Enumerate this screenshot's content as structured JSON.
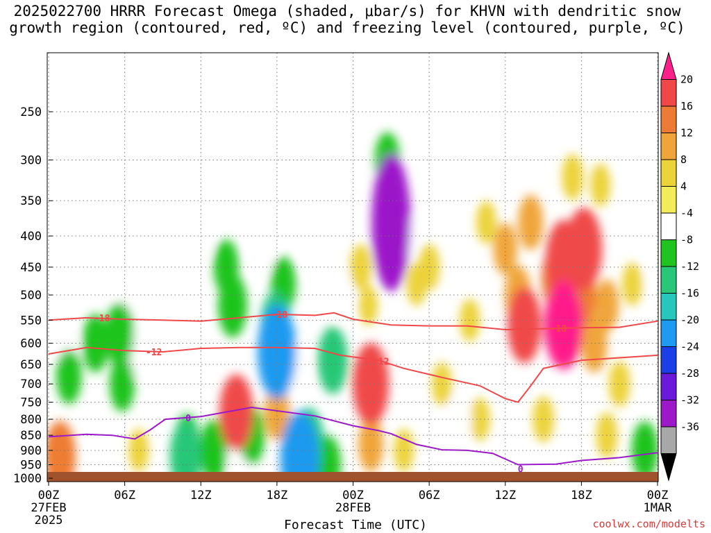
{
  "title_line1": "2025022700 HRRR Forecast Omega (shaded, μbar/s) for KHVN with dendritic snow",
  "title_line2": "growth region (contoured, red, ºC) and freezing level (contoured, purple, ºC)",
  "credit": "coolwx.com/modelts",
  "chart_data": {
    "type": "heatmap",
    "title": "2025022700 HRRR Forecast Omega (shaded, μbar/s) for KHVN with dendritic snow growth region (contoured, red, ºC) and freezing level (contoured, purple, ºC)",
    "xlabel": "Forecast Time (UTC)",
    "x_ticks": [
      {
        "hour": 0,
        "label": "00Z",
        "sub": "27FEB",
        "sub2": "2025"
      },
      {
        "hour": 6,
        "label": "06Z",
        "sub": "",
        "sub2": ""
      },
      {
        "hour": 12,
        "label": "12Z",
        "sub": "",
        "sub2": ""
      },
      {
        "hour": 18,
        "label": "18Z",
        "sub": "",
        "sub2": ""
      },
      {
        "hour": 24,
        "label": "00Z",
        "sub": "28FEB",
        "sub2": ""
      },
      {
        "hour": 30,
        "label": "06Z",
        "sub": "",
        "sub2": ""
      },
      {
        "hour": 36,
        "label": "12Z",
        "sub": "",
        "sub2": ""
      },
      {
        "hour": 42,
        "label": "18Z",
        "sub": "",
        "sub2": ""
      },
      {
        "hour": 48,
        "label": "00Z",
        "sub": "1MAR",
        "sub2": ""
      }
    ],
    "x_range_hours": [
      0,
      48
    ],
    "y_ticks_hpa": [
      250,
      300,
      350,
      400,
      450,
      500,
      550,
      600,
      650,
      700,
      750,
      800,
      850,
      900,
      950,
      1000
    ],
    "y_range_hpa": [
      200,
      1013
    ],
    "y_scale": "log-pressure",
    "grid": true,
    "colorbar": {
      "levels": [
        20,
        16,
        12,
        8,
        4,
        -4,
        -8,
        -12,
        -16,
        -20,
        -24,
        -28,
        -32,
        -36
      ],
      "colors": [
        "#ff1f8a",
        "#f04848",
        "#ee7b33",
        "#f0a53a",
        "#ecd33a",
        "#f2ec5a",
        "#ffffff",
        "#1fc41f",
        "#28c878",
        "#26c7bd",
        "#1e9af0",
        "#1a3fe6",
        "#6a1ad8",
        "#9c19c9",
        "#a8a8a8",
        "#000000"
      ]
    },
    "omega_cells": [
      {
        "h": 0.9,
        "p": 920,
        "v": 14
      },
      {
        "h": 0.9,
        "p": 890,
        "v": 6
      },
      {
        "h": 1.5,
        "p": 620,
        "v": -6
      },
      {
        "h": 1.6,
        "p": 680,
        "v": -9
      },
      {
        "h": 3.6,
        "p": 420,
        "v": -6
      },
      {
        "h": 3.7,
        "p": 600,
        "v": -10
      },
      {
        "h": 5.6,
        "p": 580,
        "v": -12
      },
      {
        "h": 5.8,
        "p": 700,
        "v": -9
      },
      {
        "h": 6.2,
        "p": 500,
        "v": -7
      },
      {
        "h": 7.0,
        "p": 620,
        "v": -8
      },
      {
        "h": 7.1,
        "p": 900,
        "v": 5
      },
      {
        "h": 10.9,
        "p": 870,
        "v": -9
      },
      {
        "h": 10.8,
        "p": 920,
        "v": -14
      },
      {
        "h": 11.0,
        "p": 350,
        "v": -6
      },
      {
        "h": 12.0,
        "p": 400,
        "v": -7
      },
      {
        "h": 13.0,
        "p": 900,
        "v": -11
      },
      {
        "h": 14.0,
        "p": 450,
        "v": -9
      },
      {
        "h": 14.5,
        "p": 520,
        "v": -12
      },
      {
        "h": 14.8,
        "p": 780,
        "v": 16
      },
      {
        "h": 15.0,
        "p": 900,
        "v": -8
      },
      {
        "h": 16.0,
        "p": 850,
        "v": -10
      },
      {
        "h": 16.8,
        "p": 420,
        "v": -8
      },
      {
        "h": 17.9,
        "p": 560,
        "v": -13
      },
      {
        "h": 18.0,
        "p": 620,
        "v": -22
      },
      {
        "h": 18.0,
        "p": 780,
        "v": 9
      },
      {
        "h": 18.5,
        "p": 480,
        "v": -9
      },
      {
        "h": 19.5,
        "p": 660,
        "v": -8
      },
      {
        "h": 19.8,
        "p": 930,
        "v": -22
      },
      {
        "h": 20.5,
        "p": 870,
        "v": -13
      },
      {
        "h": 21.0,
        "p": 430,
        "v": -6
      },
      {
        "h": 22.0,
        "p": 950,
        "v": -10
      },
      {
        "h": 22.4,
        "p": 640,
        "v": -13
      },
      {
        "h": 23.0,
        "p": 500,
        "v": -7
      },
      {
        "h": 24.6,
        "p": 450,
        "v": 6
      },
      {
        "h": 25.4,
        "p": 700,
        "v": 18
      },
      {
        "h": 25.2,
        "p": 520,
        "v": 4
      },
      {
        "h": 25.4,
        "p": 880,
        "v": 9
      },
      {
        "h": 27.0,
        "p": 380,
        "v": -36
      },
      {
        "h": 26.7,
        "p": 300,
        "v": -9
      },
      {
        "h": 28.0,
        "p": 400,
        "v": -7
      },
      {
        "h": 28.0,
        "p": 900,
        "v": 5
      },
      {
        "h": 29.0,
        "p": 480,
        "v": 5
      },
      {
        "h": 30.0,
        "p": 450,
        "v": 6
      },
      {
        "h": 31.2,
        "p": 330,
        "v": -6
      },
      {
        "h": 31.0,
        "p": 700,
        "v": 5
      },
      {
        "h": 32.4,
        "p": 800,
        "v": -8
      },
      {
        "h": 33.2,
        "p": 550,
        "v": 5
      },
      {
        "h": 34.0,
        "p": 800,
        "v": 5
      },
      {
        "h": 34.5,
        "p": 380,
        "v": 5
      },
      {
        "h": 36.0,
        "p": 420,
        "v": 8
      },
      {
        "h": 37.0,
        "p": 500,
        "v": 10
      },
      {
        "h": 37.5,
        "p": 560,
        "v": 16
      },
      {
        "h": 38.0,
        "p": 380,
        "v": 9
      },
      {
        "h": 39.0,
        "p": 800,
        "v": 6
      },
      {
        "h": 40.0,
        "p": 470,
        "v": 12
      },
      {
        "h": 40.6,
        "p": 440,
        "v": 18
      },
      {
        "h": 40.6,
        "p": 560,
        "v": 20
      },
      {
        "h": 41.3,
        "p": 320,
        "v": 6
      },
      {
        "h": 42.0,
        "p": 500,
        "v": 12
      },
      {
        "h": 42.2,
        "p": 420,
        "v": 18
      },
      {
        "h": 43.0,
        "p": 600,
        "v": 10
      },
      {
        "h": 43.5,
        "p": 330,
        "v": 5
      },
      {
        "h": 44.0,
        "p": 520,
        "v": 8
      },
      {
        "h": 44.0,
        "p": 850,
        "v": 6
      },
      {
        "h": 45.0,
        "p": 700,
        "v": 6
      },
      {
        "h": 46.0,
        "p": 480,
        "v": 5
      },
      {
        "h": 47.0,
        "p": 900,
        "v": -10
      },
      {
        "h": 48.0,
        "p": 450,
        "v": -6
      }
    ],
    "contours": [
      {
        "name": "-18",
        "color": "#f04848",
        "points": [
          [
            0,
            550
          ],
          [
            3,
            545
          ],
          [
            6,
            548
          ],
          [
            9,
            550
          ],
          [
            12,
            552
          ],
          [
            15,
            545
          ],
          [
            18,
            538
          ],
          [
            21,
            540
          ],
          [
            22.5,
            535
          ],
          [
            24,
            548
          ],
          [
            27,
            560
          ],
          [
            30,
            562
          ],
          [
            33,
            562
          ],
          [
            36,
            570
          ],
          [
            39,
            568
          ],
          [
            42,
            566
          ],
          [
            45,
            565
          ],
          [
            48,
            552
          ]
        ],
        "labels": [
          [
            4.2,
            545,
            "-18"
          ],
          [
            18.2,
            538,
            "-18"
          ],
          [
            40.2,
            567,
            "-18"
          ]
        ]
      },
      {
        "name": "-12",
        "color": "#f04848",
        "points": [
          [
            0,
            625
          ],
          [
            3,
            610
          ],
          [
            6,
            617
          ],
          [
            9,
            620
          ],
          [
            12,
            612
          ],
          [
            15,
            610
          ],
          [
            18,
            610
          ],
          [
            21,
            612
          ],
          [
            23,
            628
          ],
          [
            26,
            640
          ],
          [
            28,
            660
          ],
          [
            31,
            683
          ],
          [
            34,
            705
          ],
          [
            36,
            740
          ],
          [
            37,
            750
          ],
          [
            38,
            705
          ],
          [
            39,
            660
          ],
          [
            42,
            640
          ],
          [
            45,
            634
          ],
          [
            48,
            628
          ]
        ],
        "labels": [
          [
            8.3,
            620,
            "-12"
          ],
          [
            26.2,
            642,
            "-12"
          ]
        ]
      },
      {
        "name": "0",
        "color": "#9c19c9",
        "points": [
          [
            0,
            855
          ],
          [
            3,
            847
          ],
          [
            5,
            850
          ],
          [
            6.8,
            862
          ],
          [
            8,
            833
          ],
          [
            9.2,
            800
          ],
          [
            12,
            792
          ],
          [
            16,
            765
          ],
          [
            21,
            790
          ],
          [
            24,
            820
          ],
          [
            26,
            835
          ],
          [
            27,
            845
          ],
          [
            29,
            880
          ],
          [
            31,
            898
          ],
          [
            33,
            900
          ],
          [
            35,
            910
          ],
          [
            37,
            950
          ],
          [
            40,
            948
          ],
          [
            42,
            935
          ],
          [
            45,
            925
          ],
          [
            48,
            908
          ]
        ],
        "labels": [
          [
            11.0,
            796,
            "0"
          ],
          [
            37.2,
            965,
            "0"
          ]
        ]
      }
    ]
  }
}
